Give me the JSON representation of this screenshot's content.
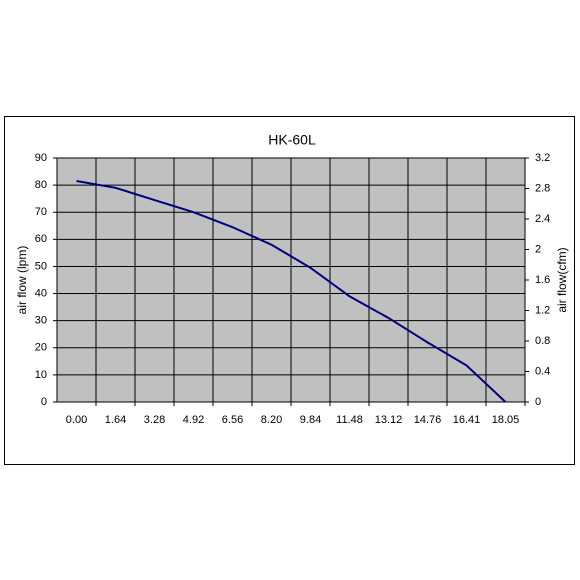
{
  "chart_data": {
    "type": "line",
    "title": "HK-60L",
    "y_label": "air flow (lpm)",
    "y2_label": "air flow(cfm)",
    "categories": [
      "0.00",
      "1.64",
      "3.28",
      "4.92",
      "6.56",
      "8.20",
      "9.84",
      "11.48",
      "13.12",
      "14.76",
      "16.41",
      "18.05"
    ],
    "values": [
      81.5,
      79,
      74.5,
      70,
      64.5,
      58,
      49.5,
      39,
      31,
      22,
      13.5,
      0
    ],
    "color": "#000080",
    "ylim": [
      0,
      90
    ],
    "yticks": [
      0,
      10,
      20,
      30,
      40,
      50,
      60,
      70,
      80,
      90
    ],
    "y2lim": [
      0,
      3.2
    ],
    "y2ticks": [
      0,
      0.4,
      0.8,
      1.2,
      1.6,
      2,
      2.4,
      2.8,
      3.2
    ],
    "grid": true
  }
}
